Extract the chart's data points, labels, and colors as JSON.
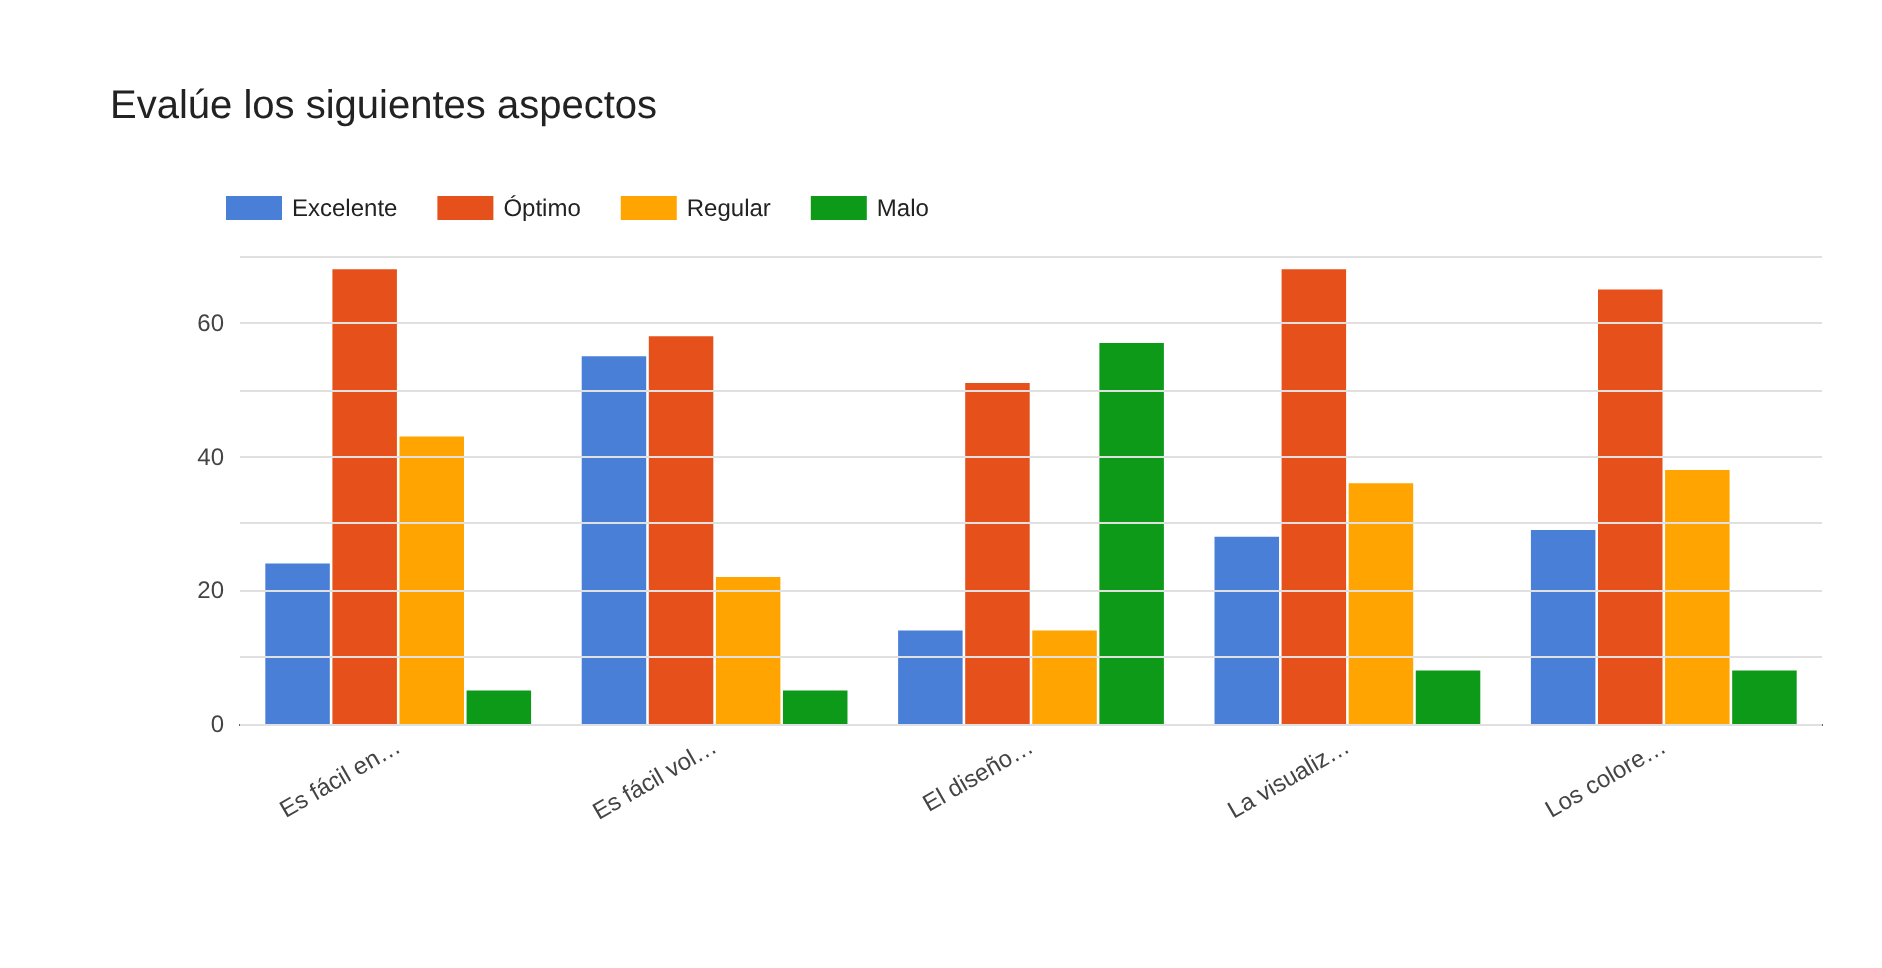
{
  "chart_data": {
    "type": "bar",
    "title": "Evalúe los siguientes aspectos",
    "categories": [
      "Es fácil en…",
      "Es fácil vol…",
      "El diseño…",
      "La visualiz…",
      "Los colore…"
    ],
    "series": [
      {
        "name": "Excelente",
        "color": "#4a7fd8",
        "values": [
          24,
          55,
          14,
          28,
          29
        ]
      },
      {
        "name": "Óptimo",
        "color": "#e5501b",
        "values": [
          68,
          58,
          51,
          68,
          65
        ]
      },
      {
        "name": "Regular",
        "color": "#ffa400",
        "values": [
          43,
          22,
          14,
          36,
          38
        ]
      },
      {
        "name": "Malo",
        "color": "#0c9a18",
        "values": [
          5,
          5,
          57,
          8,
          8
        ]
      }
    ],
    "ylim": [
      0,
      70
    ],
    "yticks": [
      0,
      {
        "value": 10,
        "label": null
      },
      20,
      {
        "value": 30,
        "label": null
      },
      40,
      {
        "value": 50,
        "label": null
      },
      60,
      {
        "value": 70,
        "label": null
      }
    ],
    "grid": "y",
    "legend": "top left"
  }
}
